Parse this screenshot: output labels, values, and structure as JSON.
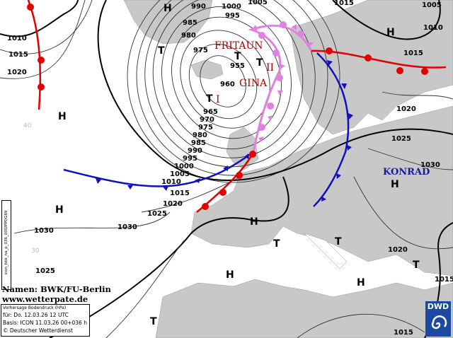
{
  "credit": {
    "names": "Namen: BWK/FU-Berlin",
    "website": "www.wetterpate.de"
  },
  "info": {
    "title": "Vorhersage Bodendruck (hPa)",
    "valid": "für:  Do. 12.03.26  12 UTC",
    "basis": "Basis: ICON  11.03.26 00+036 h",
    "copyright": "© Deutscher Wetterdienst"
  },
  "product_code": "icon_bbk_na_p_036_000/PPOG89",
  "logo": "DWD",
  "systems": {
    "fritaun": "FRITAUN",
    "gina": "GINA",
    "konrad": "KONRAD",
    "gina_center_1": "I",
    "gina_center_2": "II"
  },
  "centers": [
    "H",
    "H",
    "T",
    "T",
    "T",
    "T",
    "H",
    "H",
    "H",
    "H",
    "T",
    "T",
    "T",
    "H",
    "H",
    "T"
  ],
  "isobar_labels": [
    "990",
    "1000",
    "1005",
    "995",
    "985",
    "980",
    "975",
    "955",
    "960",
    "965",
    "970",
    "975",
    "980",
    "985",
    "990",
    "995",
    "1000",
    "1005",
    "1010",
    "1015",
    "1020",
    "1025",
    "1030",
    "1030",
    "1025",
    "1010",
    "1015",
    "1020",
    "1015",
    "1010",
    "1015",
    "1020",
    "1025",
    "1030",
    "1020",
    "1015",
    "1015",
    "1005"
  ],
  "latitude_labels": [
    "40",
    "30"
  ],
  "colors": {
    "land": "#c8c8c8",
    "sea": "#ffffff",
    "cold_front": "#1010c0",
    "warm_front": "#e00000",
    "occlusion": "#e080e0",
    "logo": "#1c4aa3"
  }
}
